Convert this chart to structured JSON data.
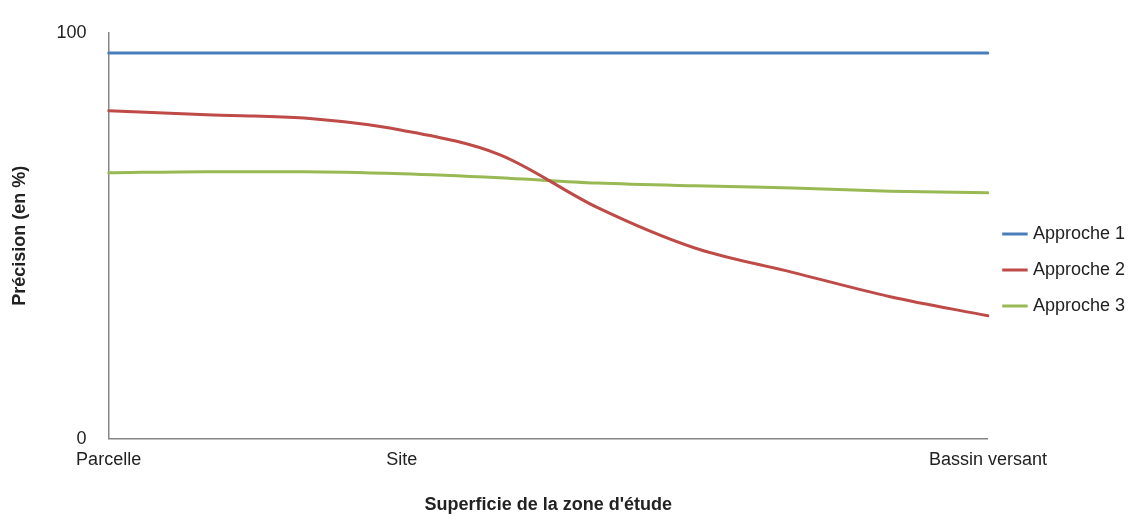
{
  "chart_data": {
    "type": "line",
    "xlabel": "Superficie de la zone d'étude",
    "ylabel": "Précision (en %)",
    "categories": [
      "Parcelle",
      null,
      null,
      "Site",
      null,
      null,
      null,
      null,
      null,
      "Bassin versant"
    ],
    "ylim": [
      0,
      100
    ],
    "yticks": [
      0,
      100
    ],
    "grid": false,
    "legend": "right",
    "marker": "none",
    "line_style": "solid",
    "series": [
      {
        "name": "Approche 1",
        "color": "#4a7ebb",
        "values": [
          95,
          95,
          95,
          95,
          95,
          95,
          95,
          95,
          95,
          95
        ]
      },
      {
        "name": "Approche 2",
        "color": "#be4b48",
        "values": [
          80.8,
          79.8,
          79,
          76,
          70,
          57,
          47,
          41,
          35,
          30.3
        ]
      },
      {
        "name": "Approche 3",
        "color": "#98b954",
        "values": [
          65.5,
          65.8,
          65.8,
          65.3,
          64.3,
          63,
          62.3,
          61.8,
          61,
          60.6
        ]
      }
    ]
  }
}
